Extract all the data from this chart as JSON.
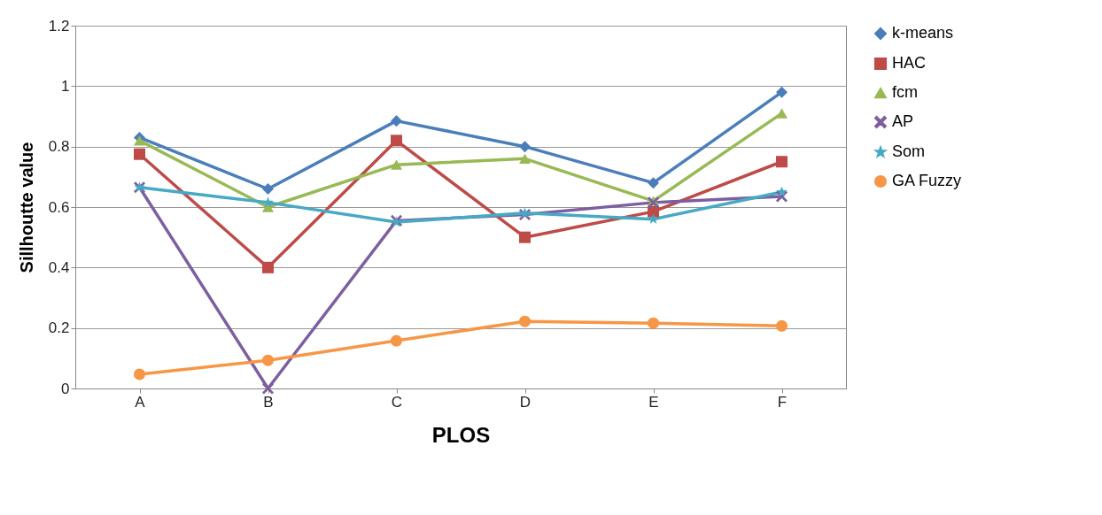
{
  "chart_data": {
    "type": "line",
    "xlabel": "PLOS",
    "ylabel": "Sillhoutte value",
    "categories": [
      "A",
      "B",
      "C",
      "D",
      "E",
      "F"
    ],
    "ylim": [
      0,
      1.2
    ],
    "yticks": [
      0,
      0.2,
      0.4,
      0.6,
      0.8,
      1,
      1.2
    ],
    "grid": "y",
    "legend": "right",
    "line_style": "solid",
    "series": [
      {
        "name": "k-means",
        "color": "#4a7ebb",
        "marker": "diamond",
        "values": [
          0.83,
          0.66,
          0.885,
          0.8,
          0.68,
          0.98
        ]
      },
      {
        "name": "HAC",
        "color": "#be4b48",
        "marker": "square",
        "values": [
          0.775,
          0.4,
          0.82,
          0.5,
          0.585,
          0.75
        ]
      },
      {
        "name": "fcm",
        "color": "#98b954",
        "marker": "triangle",
        "values": [
          0.82,
          0.6,
          0.74,
          0.76,
          0.62,
          0.91
        ]
      },
      {
        "name": "AP",
        "color": "#7d5fa0",
        "marker": "cross",
        "values": [
          0.665,
          0.0,
          0.555,
          0.575,
          0.615,
          0.635
        ]
      },
      {
        "name": "Som",
        "color": "#46aac5",
        "marker": "star",
        "values": [
          0.665,
          0.615,
          0.55,
          0.58,
          0.56,
          0.65
        ]
      },
      {
        "name": "GA Fuzzy",
        "color": "#f79646",
        "marker": "circle",
        "values": [
          0.047,
          0.093,
          0.158,
          0.222,
          0.216,
          0.207
        ]
      }
    ]
  }
}
